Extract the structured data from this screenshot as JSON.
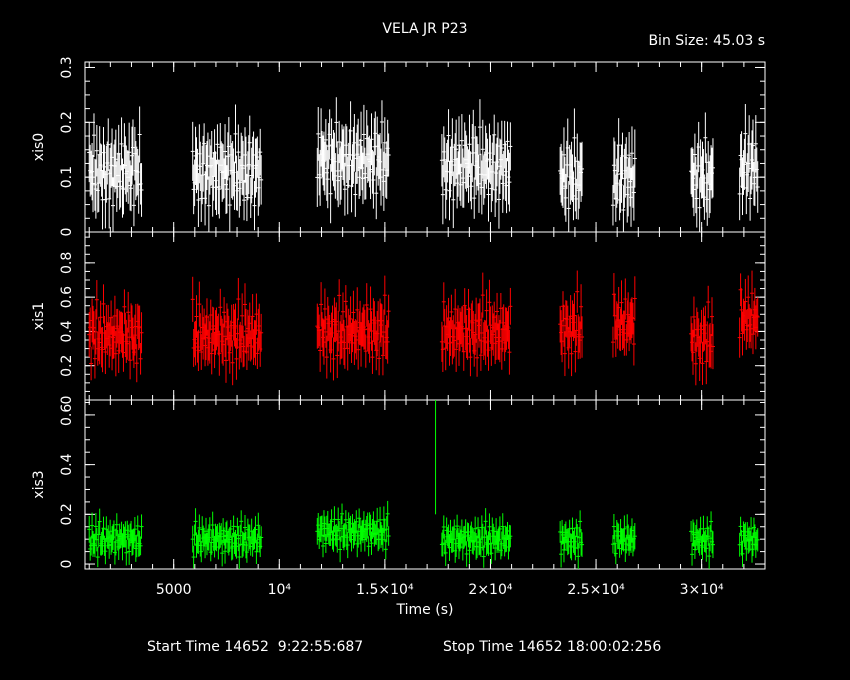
{
  "title": "VELA JR P23",
  "bin_size_label": "Bin Size: 45.03 s",
  "footer": {
    "start_label": "Start Time 14652  9:22:55:687",
    "stop_label": "Stop Time 14652 18:00:02:256"
  },
  "chart_data": {
    "type": "scatter",
    "xlabel": "Time (s)",
    "xlim": [
      800,
      33000
    ],
    "x_ticks": [
      {
        "value": 5000,
        "label": "5000"
      },
      {
        "value": 10000,
        "label": "10⁴"
      },
      {
        "value": 15000,
        "label": "1.5×10⁴"
      },
      {
        "value": 20000,
        "label": "2×10⁴"
      },
      {
        "value": 25000,
        "label": "2.5×10⁴"
      },
      {
        "value": 30000,
        "label": "3×10⁴"
      }
    ],
    "segments": [
      [
        1000,
        3500
      ],
      [
        5900,
        9200
      ],
      [
        11800,
        15200
      ],
      [
        17700,
        21000
      ],
      [
        23300,
        24400
      ],
      [
        25800,
        26900
      ],
      [
        29500,
        30600
      ],
      [
        31800,
        32700
      ]
    ],
    "panels": [
      {
        "name": "xis0",
        "ylabel": "xis0",
        "color": "#ffffff",
        "ylim": [
          0,
          0.31
        ],
        "y_ticks": [
          0,
          0.1,
          0.2,
          0.3
        ],
        "y_tick_labels": [
          "0",
          "0.1",
          "0.2",
          "0.3"
        ],
        "segment_means": [
          0.11,
          0.11,
          0.13,
          0.12,
          0.1,
          0.1,
          0.1,
          0.12
        ],
        "values": [
          0.15,
          0.09,
          0.12,
          0.14,
          0.08,
          0.16,
          0.11,
          0.1,
          0.13,
          0.07,
          0.12,
          0.15,
          0.1,
          0.12,
          0.09,
          0.14,
          0.1,
          0.08,
          0.13,
          0.11,
          0.15,
          0.09,
          0.12,
          0.1,
          0.14,
          0.08,
          0.12,
          0.1,
          0.15,
          0.11,
          0.09,
          0.13,
          0.12,
          0.1,
          0.14,
          0.08,
          0.11,
          0.16,
          0.1,
          0.12,
          0.14,
          0.09,
          0.13,
          0.11,
          0.1,
          0.12,
          0.15,
          0.08
        ],
        "error": 0.045
      },
      {
        "name": "xis1",
        "ylabel": "xis1",
        "color": "#ff0000",
        "ylim": [
          0,
          0.98
        ],
        "y_ticks": [
          0,
          0.2,
          0.4,
          0.6,
          0.8
        ],
        "y_tick_labels": [
          "0",
          "0.2",
          "0.4",
          "0.6",
          "0.8"
        ],
        "segment_means": [
          0.38,
          0.38,
          0.4,
          0.4,
          0.42,
          0.45,
          0.36,
          0.48
        ],
        "values": [
          0.35,
          0.42,
          0.3,
          0.5,
          0.38,
          0.45,
          0.33,
          0.4,
          0.55,
          0.36,
          0.43,
          0.31,
          0.47,
          0.39,
          0.34,
          0.52,
          0.41,
          0.37,
          0.44,
          0.32,
          0.49,
          0.4,
          0.35,
          0.46,
          0.38,
          0.42,
          0.3,
          0.5,
          0.36,
          0.44,
          0.39,
          0.33,
          0.48,
          0.41,
          0.37,
          0.45,
          0.34,
          0.51,
          0.38,
          0.43,
          0.36,
          0.47,
          0.4,
          0.32,
          0.46,
          0.39,
          0.42,
          0.35
        ],
        "error": 0.11
      },
      {
        "name": "xis3",
        "ylabel": "xis3",
        "color": "#00ff00",
        "ylim": [
          -0.02,
          0.66
        ],
        "y_ticks": [
          0,
          0.2,
          0.4,
          0.6
        ],
        "y_tick_labels": [
          "0",
          "0.2",
          "0.4",
          "0.6"
        ],
        "segment_means": [
          0.1,
          0.1,
          0.13,
          0.1,
          0.1,
          0.1,
          0.1,
          0.1
        ],
        "values": [
          0.12,
          0.08,
          0.1,
          0.14,
          0.07,
          0.11,
          0.09,
          0.13,
          0.1,
          0.06,
          0.12,
          0.15,
          0.09,
          0.11,
          0.08,
          0.13,
          0.1,
          0.07,
          0.12,
          0.1,
          0.14,
          0.08,
          0.11,
          0.09,
          0.13,
          0.1,
          0.12,
          0.07,
          0.11,
          0.14,
          0.09,
          0.1,
          0.12,
          0.08,
          0.13,
          0.1,
          0.11,
          0.09,
          0.14,
          0.07,
          0.12,
          0.1,
          0.08,
          0.13,
          0.11,
          0.09,
          0.12,
          0.1
        ],
        "error": 0.045,
        "spike": {
          "x": 17400,
          "y": 0.66,
          "low": 0.2
        }
      }
    ]
  }
}
